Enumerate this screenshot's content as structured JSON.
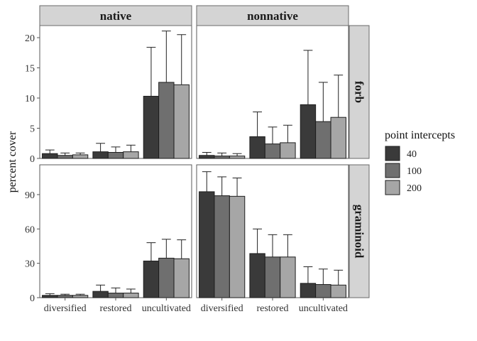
{
  "chart_data": {
    "type": "bar",
    "ylabel": "percent cover",
    "categories": [
      "diversified",
      "restored",
      "uncultivated"
    ],
    "legend": {
      "title": "point intercepts",
      "placement": "right",
      "entries": [
        {
          "label": "40",
          "color": "#3a3a3a"
        },
        {
          "label": "100",
          "color": "#6f6f6f"
        },
        {
          "label": "200",
          "color": "#a6a6a6"
        }
      ]
    },
    "columns": [
      "native",
      "nonnative"
    ],
    "rows": [
      {
        "label": "forb",
        "ylim": [
          0,
          22
        ],
        "ticks": [
          0,
          5,
          10,
          15,
          20
        ]
      },
      {
        "label": "graminoid",
        "ylim": [
          0,
          116
        ],
        "ticks": [
          0,
          30,
          60,
          90
        ]
      }
    ],
    "panels": [
      {
        "column": "native",
        "row": "forb",
        "series": [
          {
            "name": "40",
            "values": [
              0.8,
              1.1,
              10.3
            ],
            "errors": [
              0.6,
              1.4,
              8.1
            ]
          },
          {
            "name": "100",
            "values": [
              0.5,
              1.0,
              12.6
            ],
            "errors": [
              0.4,
              0.9,
              8.5
            ]
          },
          {
            "name": "200",
            "values": [
              0.6,
              1.1,
              12.2
            ],
            "errors": [
              0.3,
              1.1,
              8.3
            ]
          }
        ]
      },
      {
        "column": "nonnative",
        "row": "forb",
        "series": [
          {
            "name": "40",
            "values": [
              0.5,
              3.6,
              8.9
            ],
            "errors": [
              0.5,
              4.1,
              9.0
            ]
          },
          {
            "name": "100",
            "values": [
              0.4,
              2.4,
              6.1
            ],
            "errors": [
              0.5,
              2.8,
              6.5
            ]
          },
          {
            "name": "200",
            "values": [
              0.4,
              2.6,
              6.8
            ],
            "errors": [
              0.4,
              2.9,
              7.0
            ]
          }
        ]
      },
      {
        "column": "native",
        "row": "graminoid",
        "series": [
          {
            "name": "40",
            "values": [
              2,
              5.5,
              32
            ],
            "errors": [
              1.5,
              5.5,
              16
            ]
          },
          {
            "name": "100",
            "values": [
              2,
              4,
              34.5
            ],
            "errors": [
              1,
              4.5,
              16.5
            ]
          },
          {
            "name": "200",
            "values": [
              2,
              4,
              34
            ],
            "errors": [
              1,
              3.5,
              16.5
            ]
          }
        ]
      },
      {
        "column": "nonnative",
        "row": "graminoid",
        "series": [
          {
            "name": "40",
            "values": [
              92.5,
              38.5,
              12.5
            ],
            "errors": [
              17.5,
              21.5,
              14.5
            ]
          },
          {
            "name": "100",
            "values": [
              89,
              35.5,
              11.5
            ],
            "errors": [
              16.5,
              19.5,
              13.5
            ]
          },
          {
            "name": "200",
            "values": [
              88.5,
              35.5,
              11
            ],
            "errors": [
              16,
              19.5,
              13
            ]
          }
        ]
      }
    ]
  }
}
